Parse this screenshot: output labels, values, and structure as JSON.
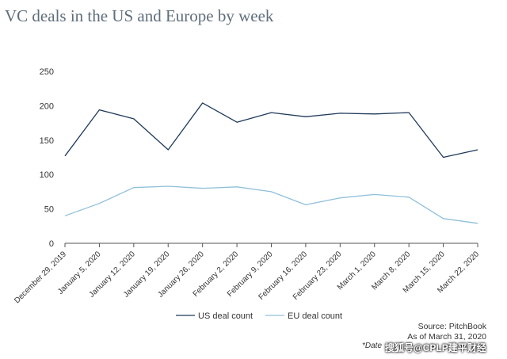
{
  "chart_data": {
    "type": "line",
    "title": "VC deals in the US and Europe by week",
    "categories": [
      "December 29, 2019",
      "January 5, 2020",
      "January 12, 2020",
      "January 19, 2020",
      "January 26, 2020",
      "February 2, 2020",
      "February 9, 2020",
      "February 16, 2020",
      "February 23, 2020",
      "March 1, 2020",
      "March 8, 2020",
      "March 15, 2020",
      "March 22, 2020"
    ],
    "series": [
      {
        "name": "US deal count",
        "color": "#1f3a5a",
        "values": [
          127,
          194,
          181,
          136,
          204,
          176,
          190,
          184,
          189,
          188,
          190,
          125,
          136
        ]
      },
      {
        "name": "EU deal count",
        "color": "#8fc0da",
        "values": [
          40,
          58,
          81,
          83,
          80,
          82,
          75,
          56,
          66,
          71,
          67,
          36,
          29
        ]
      }
    ],
    "yticks": [
      0,
      50,
      100,
      150,
      200,
      250
    ],
    "ylim": [
      0,
      250
    ],
    "legend_position": "bottom",
    "grid": false
  },
  "footer": {
    "source": "Source: PitchBook",
    "as_of": "As of March 31, 2020",
    "note": "*Date",
    "watermark": "搜狐号@CPLP建平财经"
  }
}
